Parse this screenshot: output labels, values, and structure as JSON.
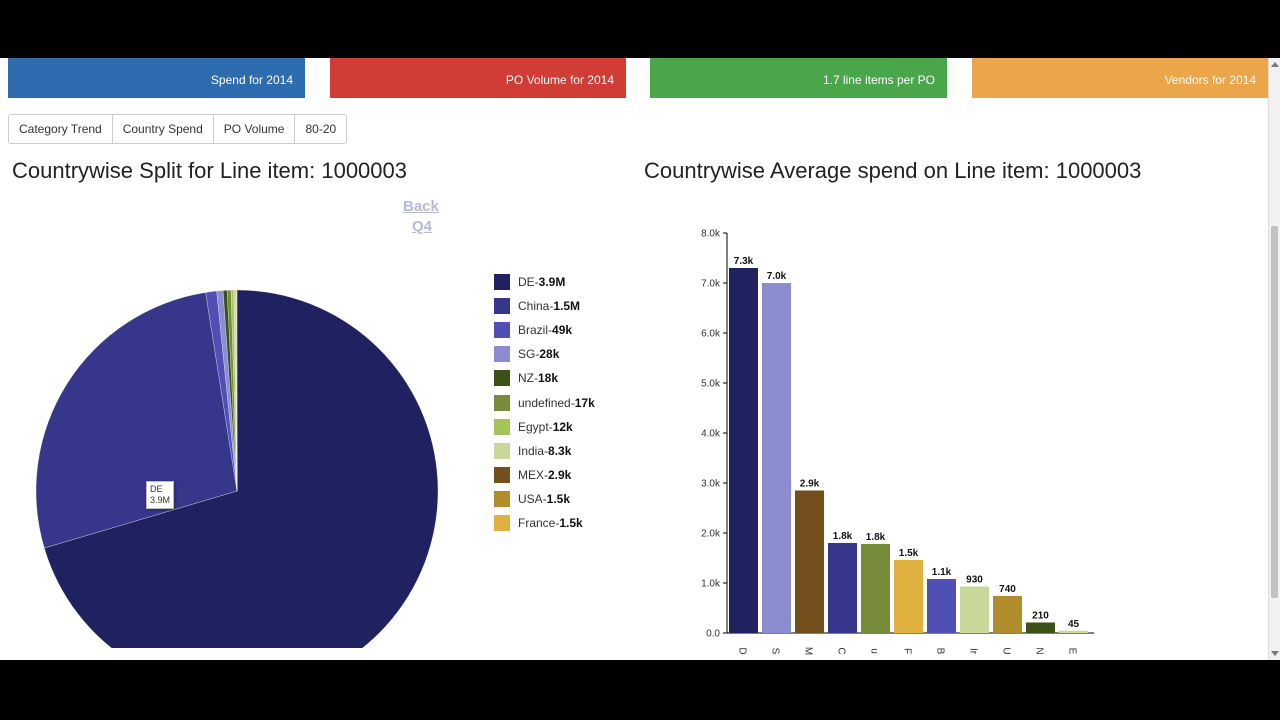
{
  "kpis": [
    {
      "label": "Spend for 2014",
      "color": "#2d6cae"
    },
    {
      "label": "PO Volume for 2014",
      "color": "#cf3d36"
    },
    {
      "label": "1.7 line items per PO",
      "color": "#4aa64a"
    },
    {
      "label": "Vendors for 2014",
      "color": "#eca64a"
    }
  ],
  "tabs": [
    "Category Trend",
    "Country Spend",
    "PO Volume",
    "80-20"
  ],
  "left_title": "Countrywise Split for Line item: 1000003",
  "right_title": "Countrywise Average spend on Line item: 1000003",
  "links": {
    "back": "Back",
    "q4": "Q4"
  },
  "tooltip": {
    "name": "DE",
    "value": "3.9M"
  },
  "chart_data": [
    {
      "type": "pie",
      "title": "Countrywise Split for Line item: 1000003",
      "slices": [
        {
          "name": "DE",
          "label": "3.9M",
          "value": 3900000,
          "color": "#1f2160"
        },
        {
          "name": "China",
          "label": "1.5M",
          "value": 1500000,
          "color": "#36368a"
        },
        {
          "name": "Brazil",
          "label": "49k",
          "value": 49000,
          "color": "#4f4fb4"
        },
        {
          "name": "SG",
          "label": "28k",
          "value": 28000,
          "color": "#8c8cd0"
        },
        {
          "name": "NZ",
          "label": "18k",
          "value": 18000,
          "color": "#3c501a"
        },
        {
          "name": "undefined",
          "label": "17k",
          "value": 17000,
          "color": "#768c3a"
        },
        {
          "name": "Egypt",
          "label": "12k",
          "value": 12000,
          "color": "#a4c45a"
        },
        {
          "name": "India",
          "label": "8.3k",
          "value": 8300,
          "color": "#c8d89a"
        },
        {
          "name": "MEX",
          "label": "2.9k",
          "value": 2900,
          "color": "#744f1c"
        },
        {
          "name": "USA",
          "label": "1.5k",
          "value": 1500,
          "color": "#b08c2c"
        },
        {
          "name": "France",
          "label": "1.5k",
          "value": 1500,
          "color": "#e0b040"
        }
      ]
    },
    {
      "type": "bar",
      "title": "Countrywise Average spend on Line item: 1000003",
      "ylim": [
        0,
        8000
      ],
      "yticks": [
        "0.0",
        "1.0k",
        "2.0k",
        "3.0k",
        "4.0k",
        "5.0k",
        "6.0k",
        "7.0k",
        "8.0k"
      ],
      "categories": [
        "D",
        "S",
        "M",
        "C",
        "u",
        "F",
        "B",
        "Ir",
        "U",
        "N",
        "E"
      ],
      "values": [
        7300,
        7000,
        2850,
        1800,
        1780,
        1460,
        1080,
        930,
        740,
        210,
        45
      ],
      "labels": [
        "7.3k",
        "7.0k",
        "2.9k",
        "1.8k",
        "1.8k",
        "1.5k",
        "1.1k",
        "930",
        "740",
        "210",
        "45"
      ],
      "colors": [
        "#1f2160",
        "#8c8cd0",
        "#744f1c",
        "#36368a",
        "#768c3a",
        "#e0b040",
        "#4f4fb4",
        "#c8d89a",
        "#b08c2c",
        "#3c501a",
        "#c8d89a"
      ]
    }
  ]
}
